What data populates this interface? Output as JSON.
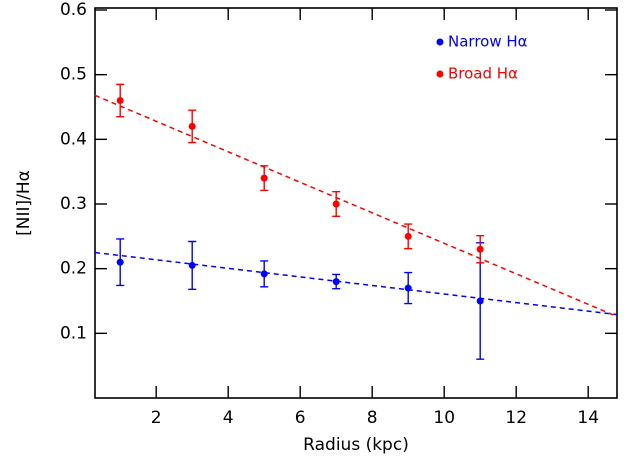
{
  "chart_data": {
    "type": "scatter",
    "x_label": "Radius (kpc)",
    "y_label": "[NII]/Hα",
    "xlim": [
      0.3,
      14.8
    ],
    "ylim": [
      0,
      0.6
    ],
    "xticks": [
      2,
      4,
      6,
      8,
      10,
      12,
      14
    ],
    "yticks": [
      0.1,
      0.2,
      0.3,
      0.4,
      0.5,
      0.6
    ],
    "legend": "upper right",
    "series": [
      {
        "name": "Narrow Hα",
        "color": "#0000ff",
        "x": [
          1,
          3,
          5,
          7,
          9,
          11
        ],
        "values": [
          0.21,
          0.205,
          0.192,
          0.18,
          0.17,
          0.15
        ],
        "errors": [
          0.036,
          0.037,
          0.02,
          0.011,
          0.024,
          0.09
        ],
        "fit": {
          "x": [
            0.3,
            14.8
          ],
          "values": [
            0.225,
            0.129
          ]
        }
      },
      {
        "name": "Broad Hα",
        "color": "#ff0000",
        "x": [
          1,
          3,
          5,
          7,
          9,
          11
        ],
        "values": [
          0.46,
          0.42,
          0.34,
          0.3,
          0.25,
          0.23
        ],
        "errors": [
          0.025,
          0.025,
          0.019,
          0.019,
          0.019,
          0.021
        ],
        "fit": {
          "x": [
            0.3,
            14.8
          ],
          "values": [
            0.468,
            0.126
          ]
        }
      }
    ]
  }
}
